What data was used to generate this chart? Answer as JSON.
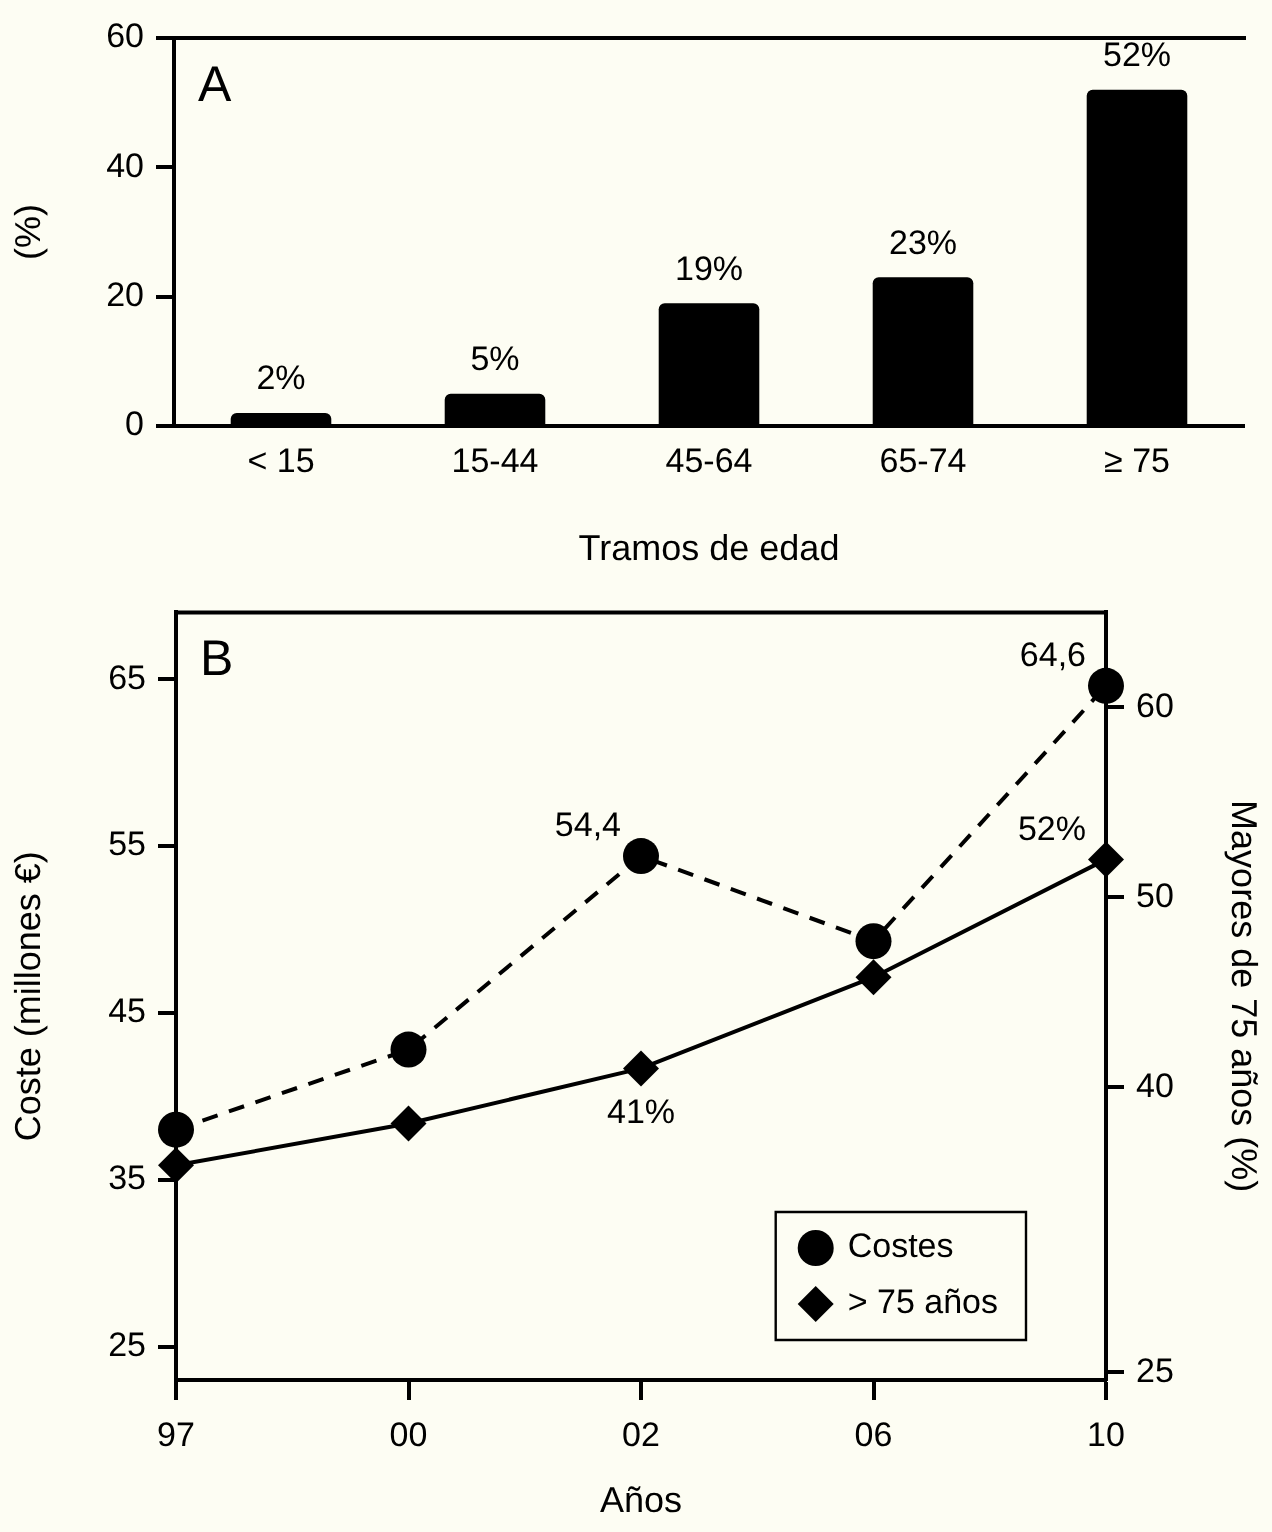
{
  "chart_data": [
    {
      "type": "bar",
      "annotations": [
        "A"
      ],
      "ylabel": "(%)",
      "xlabel": "Tramos de edad",
      "categories": [
        "< 15",
        "15-44",
        "45-64",
        "65-74",
        "≥ 75"
      ],
      "values": [
        2,
        5,
        19,
        23,
        52
      ],
      "color": "#000000",
      "value_labels": [
        "2%",
        "5%",
        "19%",
        "23%",
        "52%"
      ],
      "ylim": [
        0,
        60
      ],
      "yticks": [
        0,
        20,
        40,
        60
      ]
    },
    {
      "type": "line",
      "annotations": [
        "B"
      ],
      "xlabel": "Años",
      "ylabel": "Coste (millones €)",
      "y2label": "Mayores de 75 años (%)",
      "categories": [
        "97",
        "00",
        "02",
        "06",
        "10"
      ],
      "series": [
        {
          "name": "Costes",
          "color": "#000000",
          "marker": "circle",
          "line_style": "dashed",
          "values": [
            38,
            42.8,
            54.4,
            49.3,
            64.6
          ],
          "value_labels": [
            null,
            null,
            "54,4",
            null,
            "64,6"
          ]
        },
        {
          "name": "> 75 años",
          "color": "#000000",
          "marker": "diamond",
          "line_style": "solid",
          "axis": "y2",
          "values": [
            35.9,
            38.1,
            41,
            45.8,
            52
          ],
          "value_labels": [
            null,
            null,
            "41%",
            null,
            "52%"
          ]
        }
      ],
      "ylim": [
        23,
        69
      ],
      "yticks": [
        25,
        35,
        45,
        55,
        65
      ],
      "y2lim": [
        24.6,
        65
      ],
      "y2ticks": [
        25,
        40,
        50,
        60
      ],
      "legend": "bottom right"
    }
  ]
}
